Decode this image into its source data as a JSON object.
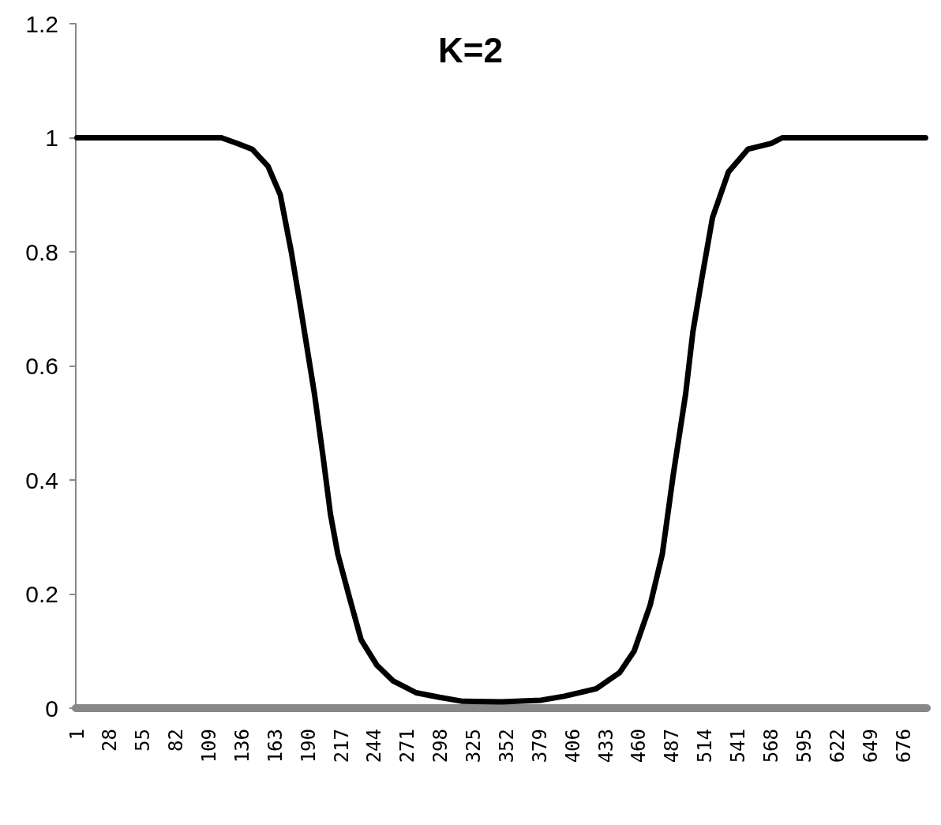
{
  "chart_data": {
    "type": "line",
    "title": "K=2",
    "x": [
      1,
      119,
      132,
      144,
      157,
      167,
      176,
      183,
      189,
      195,
      202,
      208,
      214,
      224,
      233,
      246,
      259,
      278,
      297,
      316,
      348,
      380,
      399,
      425,
      444,
      456,
      469,
      479,
      488,
      498,
      504,
      511,
      520,
      533,
      549,
      568,
      577,
      694
    ],
    "series": [
      {
        "color": "#000000",
        "values": [
          1,
          1,
          0.99,
          0.98,
          0.95,
          0.9,
          0.8,
          0.71,
          0.63,
          0.55,
          0.44,
          0.34,
          0.27,
          0.19,
          0.12,
          0.075,
          0.048,
          0.027,
          0.019,
          0.012,
          0.011,
          0.014,
          0.021,
          0.034,
          0.062,
          0.1,
          0.18,
          0.27,
          0.41,
          0.55,
          0.66,
          0.75,
          0.86,
          0.94,
          0.98,
          0.99,
          1,
          1
        ]
      }
    ],
    "xlim": [
      0,
      695
    ],
    "xticks": [
      1,
      28,
      55,
      82,
      109,
      136,
      163,
      190,
      217,
      244,
      271,
      298,
      325,
      352,
      379,
      406,
      433,
      460,
      487,
      514,
      541,
      568,
      595,
      622,
      649,
      676
    ],
    "ylim": [
      0,
      1.2
    ],
    "yticks": [
      0,
      0.2,
      0.4,
      0.6,
      0.8,
      1,
      1.2
    ],
    "grid": false,
    "marker": "none",
    "line_style": "solid"
  }
}
